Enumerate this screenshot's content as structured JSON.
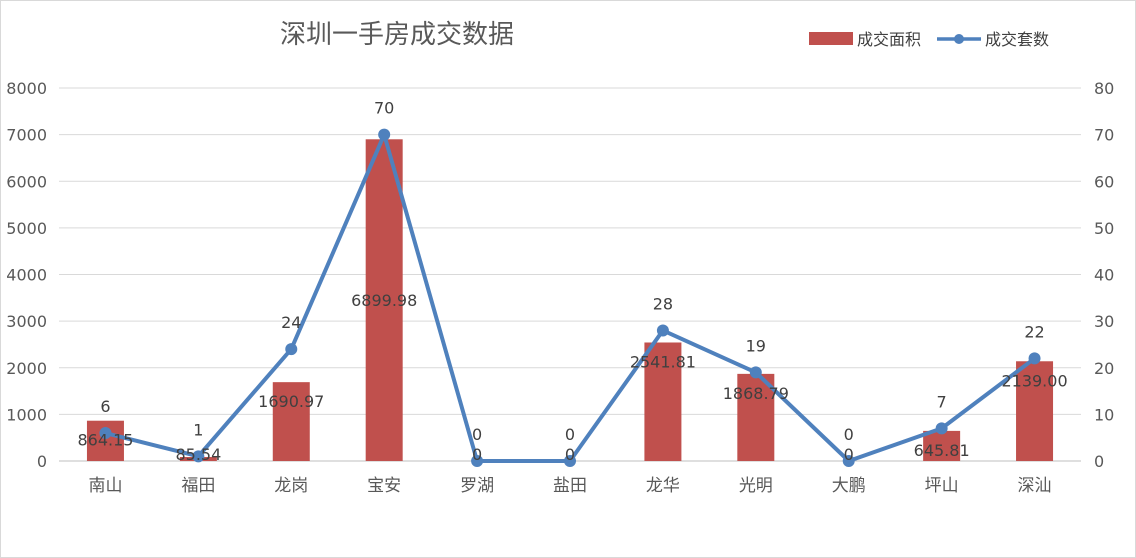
{
  "chart_data": {
    "type": "bar",
    "title": "深圳一手房成交数据",
    "categories": [
      "南山",
      "福田",
      "龙岗",
      "宝安",
      "罗湖",
      "盐田",
      "龙华",
      "光明",
      "大鹏",
      "坪山",
      "深汕"
    ],
    "series": [
      {
        "name": "成交面积",
        "type": "bar",
        "axis": "left",
        "color": "#c0504d",
        "values": [
          864.15,
          85.54,
          1690.97,
          6899.98,
          0,
          0,
          2541.81,
          1868.79,
          0,
          645.81,
          2139.0
        ],
        "labels": [
          "864.15",
          "85.54",
          "1690.97",
          "6899.98",
          "0",
          "0",
          "2541.81",
          "1868.79",
          "0",
          "645.81",
          "2139.00"
        ]
      },
      {
        "name": "成交套数",
        "type": "line",
        "axis": "right",
        "color": "#4f81bd",
        "values": [
          6,
          1,
          24,
          70,
          0,
          0,
          28,
          19,
          0,
          7,
          22
        ],
        "labels": [
          "6",
          "1",
          "24",
          "70",
          "0",
          "0",
          "28",
          "19",
          "0",
          "7",
          "22"
        ]
      }
    ],
    "y_left": {
      "min": 0,
      "max": 8000,
      "step": 1000,
      "ticks": [
        "0",
        "1000",
        "2000",
        "3000",
        "4000",
        "5000",
        "6000",
        "7000",
        "8000"
      ]
    },
    "y_right": {
      "min": 0,
      "max": 80,
      "step": 10,
      "ticks": [
        "0",
        "10",
        "20",
        "30",
        "40",
        "50",
        "60",
        "70",
        "80"
      ]
    },
    "grid": true,
    "legend_position": "top-right"
  }
}
